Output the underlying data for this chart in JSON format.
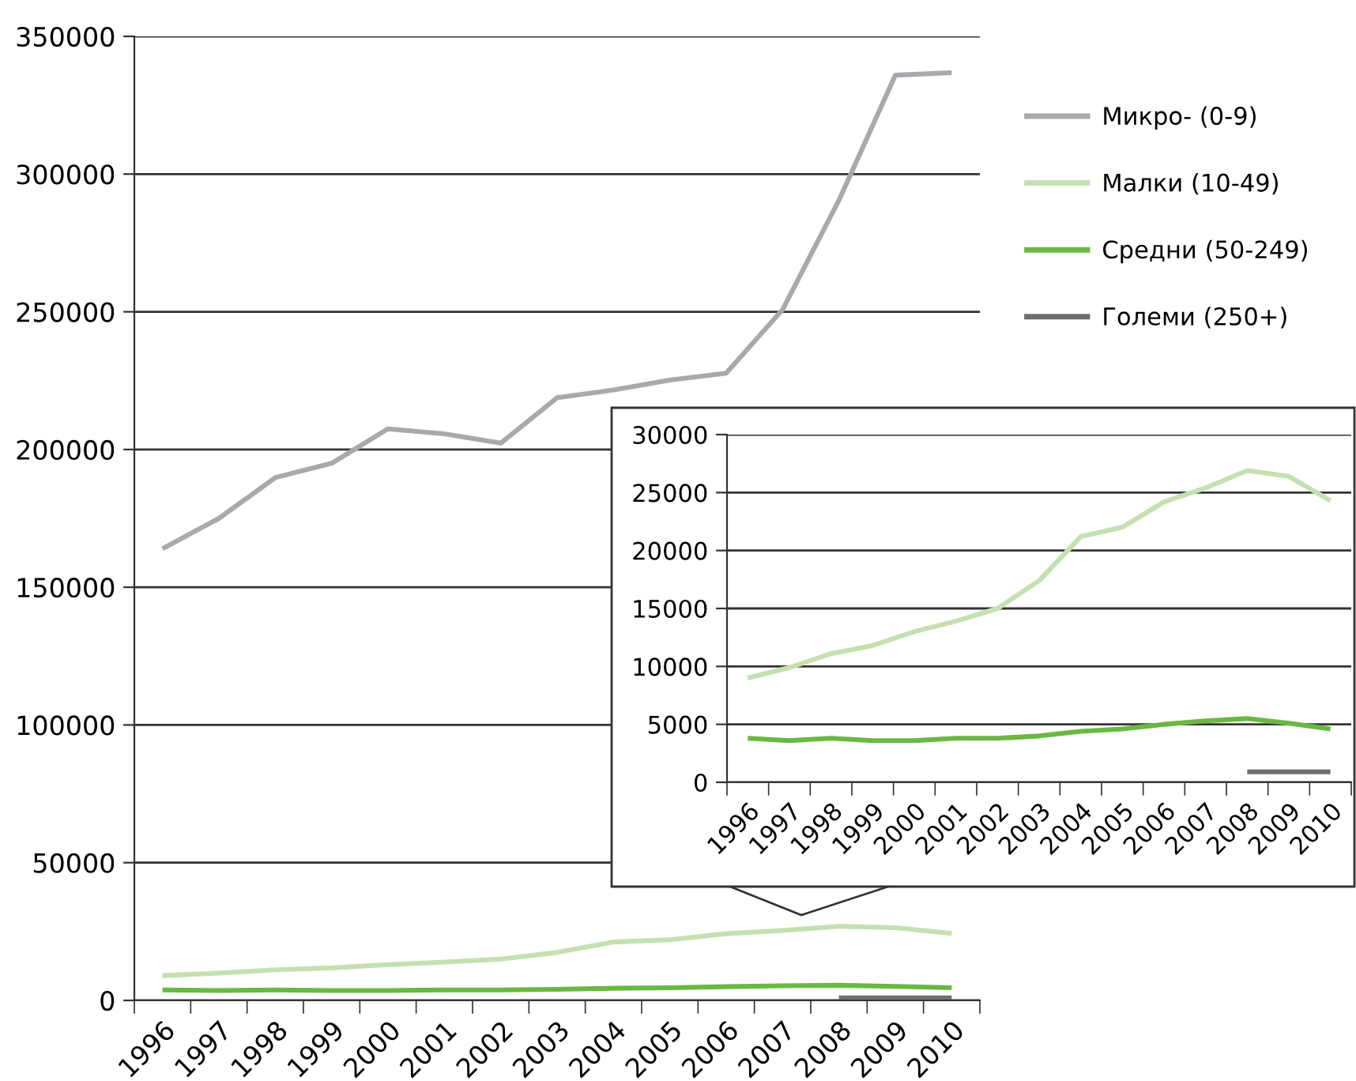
{
  "chart_data": [
    {
      "type": "line",
      "categories": [
        "1996",
        "1997",
        "1998",
        "1999",
        "2000",
        "2001",
        "2002",
        "2003",
        "2004",
        "2005",
        "2006",
        "2007",
        "2008",
        "2009",
        "2010"
      ],
      "series": [
        {
          "name": "Микро- (0-9)",
          "color": "#a7a9ac",
          "values": [
            164000,
            175000,
            189800,
            195000,
            207500,
            205700,
            202300,
            218800,
            221600,
            225200,
            227700,
            250800,
            290500,
            335900,
            336800
          ]
        },
        {
          "name": "Малки (10-49)",
          "color": "#c5e0b0",
          "values": [
            9000,
            9900,
            11100,
            11800,
            13000,
            13900,
            15000,
            17400,
            21200,
            22000,
            24200,
            25400,
            26900,
            26400,
            24300
          ]
        },
        {
          "name": "Средни (50-249)",
          "color": "#6ab843",
          "values": [
            3800,
            3600,
            3800,
            3600,
            3600,
            3800,
            3800,
            4000,
            4400,
            4600,
            5000,
            5300,
            5500,
            5100,
            4600
          ]
        },
        {
          "name": "Големи (250+)",
          "color": "#6d6e71",
          "values": [
            null,
            null,
            null,
            null,
            null,
            null,
            null,
            null,
            null,
            null,
            null,
            null,
            900,
            900,
            900
          ]
        }
      ],
      "ylim": [
        0,
        350000
      ],
      "yticks": [
        0,
        50000,
        100000,
        150000,
        200000,
        250000,
        300000,
        350000
      ],
      "grid": "y",
      "legend": "top right"
    },
    {
      "type": "line",
      "categories": [
        "1996",
        "1997",
        "1998",
        "1999",
        "2000",
        "2001",
        "2002",
        "2003",
        "2004",
        "2005",
        "2006",
        "2007",
        "2008",
        "2009",
        "2010"
      ],
      "series": [
        {
          "color": "#c5e0b0",
          "values": [
            9000,
            9900,
            11100,
            11800,
            13000,
            13900,
            15000,
            17400,
            21200,
            22000,
            24200,
            25400,
            26900,
            26400,
            24300
          ]
        },
        {
          "color": "#6ab843",
          "values": [
            3800,
            3600,
            3800,
            3600,
            3600,
            3800,
            3800,
            4000,
            4400,
            4600,
            5000,
            5300,
            5500,
            5100,
            4600
          ]
        },
        {
          "color": "#6d6e71",
          "values": [
            null,
            null,
            null,
            null,
            null,
            null,
            null,
            null,
            null,
            null,
            null,
            null,
            900,
            900,
            900
          ]
        }
      ],
      "ylim": [
        0,
        30000
      ],
      "yticks": [
        0,
        5000,
        10000,
        15000,
        20000,
        25000,
        30000
      ],
      "grid": "y"
    }
  ]
}
